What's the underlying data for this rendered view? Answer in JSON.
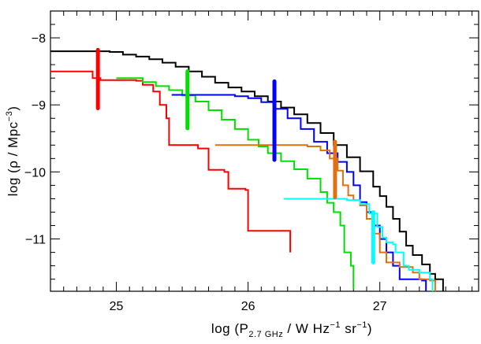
{
  "chart_data": {
    "type": "line",
    "title": "",
    "xlabel": {
      "prefix": "log (P",
      "subscript": "2.7 GHz",
      "middle1": " / W Hz",
      "sup1": "−1",
      "middle2": " sr",
      "sup2": "−1",
      "suffix": ")"
    },
    "ylabel": {
      "prefix": "log (ρ / Mpc",
      "sup": "−3",
      "suffix": ")"
    },
    "xlim": [
      24.5,
      27.75
    ],
    "ylim": [
      -11.78,
      -7.6
    ],
    "x_ticks": [
      {
        "value": 25,
        "label": "25"
      },
      {
        "value": 26,
        "label": "26"
      },
      {
        "value": 27,
        "label": "27"
      }
    ],
    "y_ticks": [
      {
        "value": -8,
        "label": "−8"
      },
      {
        "value": -9,
        "label": "−9"
      },
      {
        "value": -10,
        "label": "−10"
      },
      {
        "value": -11,
        "label": "−11"
      }
    ],
    "x_minor_step": 0.1,
    "y_minor_step": 0.2,
    "grid": false,
    "legend": "none",
    "series": [
      {
        "color": "#000000",
        "width": 2,
        "points": [
          [
            24.5,
            -8.2
          ],
          [
            24.95,
            -8.21
          ],
          [
            25.05,
            -8.25
          ],
          [
            25.15,
            -8.28
          ],
          [
            25.25,
            -8.32
          ],
          [
            25.35,
            -8.37
          ],
          [
            25.45,
            -8.43
          ],
          [
            25.55,
            -8.5
          ],
          [
            25.65,
            -8.58
          ],
          [
            25.75,
            -8.67
          ],
          [
            25.85,
            -8.74
          ],
          [
            25.95,
            -8.8
          ],
          [
            26.05,
            -8.87
          ],
          [
            26.15,
            -8.95
          ],
          [
            26.25,
            -9.04
          ],
          [
            26.35,
            -9.14
          ],
          [
            26.45,
            -9.27
          ],
          [
            26.55,
            -9.42
          ],
          [
            26.65,
            -9.6
          ],
          [
            26.75,
            -9.78
          ],
          [
            26.85,
            -9.99
          ],
          [
            26.95,
            -10.22
          ],
          [
            27.0,
            -10.36
          ],
          [
            27.05,
            -10.52
          ],
          [
            27.1,
            -10.7
          ],
          [
            27.15,
            -10.89
          ],
          [
            27.2,
            -11.1
          ],
          [
            27.25,
            -11.24
          ],
          [
            27.32,
            -11.38
          ],
          [
            27.38,
            -11.52
          ],
          [
            27.42,
            -11.6
          ],
          [
            27.48,
            -11.78
          ]
        ]
      },
      {
        "color": "#ff0000",
        "width": 2,
        "points": [
          [
            24.5,
            -8.5
          ],
          [
            24.78,
            -8.5
          ],
          [
            24.82,
            -8.6
          ],
          [
            24.88,
            -8.63
          ],
          [
            25.15,
            -8.64
          ],
          [
            25.2,
            -8.7
          ],
          [
            25.28,
            -8.8
          ],
          [
            25.33,
            -9.0
          ],
          [
            25.38,
            -9.2
          ],
          [
            25.4,
            -9.6
          ],
          [
            25.62,
            -9.65
          ],
          [
            25.7,
            -9.97
          ],
          [
            25.82,
            -10.0
          ],
          [
            25.85,
            -10.25
          ],
          [
            25.98,
            -10.27
          ],
          [
            26.0,
            -10.88
          ],
          [
            26.32,
            -10.9
          ],
          [
            26.32,
            -11.2
          ]
        ]
      },
      {
        "color": "#00e000",
        "width": 2,
        "points": [
          [
            25.0,
            -8.6
          ],
          [
            25.1,
            -8.6
          ],
          [
            25.2,
            -8.66
          ],
          [
            25.3,
            -8.72
          ],
          [
            25.4,
            -8.78
          ],
          [
            25.5,
            -8.86
          ],
          [
            25.6,
            -8.95
          ],
          [
            25.7,
            -9.08
          ],
          [
            25.8,
            -9.22
          ],
          [
            25.9,
            -9.36
          ],
          [
            26.0,
            -9.52
          ],
          [
            26.08,
            -9.62
          ],
          [
            26.15,
            -9.72
          ],
          [
            26.25,
            -9.84
          ],
          [
            26.35,
            -9.96
          ],
          [
            26.45,
            -10.1
          ],
          [
            26.55,
            -10.3
          ],
          [
            26.6,
            -10.46
          ],
          [
            26.65,
            -10.6
          ],
          [
            26.7,
            -10.8
          ],
          [
            26.73,
            -11.2
          ],
          [
            26.78,
            -11.4
          ],
          [
            26.8,
            -11.75
          ]
        ]
      },
      {
        "color": "#0000ff",
        "width": 2,
        "points": [
          [
            25.42,
            -8.85
          ],
          [
            25.9,
            -8.87
          ],
          [
            26.0,
            -8.9
          ],
          [
            26.1,
            -8.96
          ],
          [
            26.2,
            -9.06
          ],
          [
            26.3,
            -9.2
          ],
          [
            26.4,
            -9.36
          ],
          [
            26.5,
            -9.55
          ],
          [
            26.6,
            -9.72
          ],
          [
            26.68,
            -9.85
          ],
          [
            26.75,
            -10.0
          ],
          [
            26.8,
            -10.2
          ],
          [
            26.85,
            -10.45
          ],
          [
            26.9,
            -10.6
          ],
          [
            26.95,
            -10.8
          ],
          [
            27.0,
            -11.0
          ],
          [
            27.05,
            -11.2
          ],
          [
            27.1,
            -11.4
          ],
          [
            27.15,
            -11.6
          ],
          [
            27.32,
            -11.62
          ],
          [
            27.35,
            -11.78
          ]
        ]
      },
      {
        "color": "#e07010",
        "width": 2,
        "points": [
          [
            25.75,
            -9.6
          ],
          [
            26.45,
            -9.62
          ],
          [
            26.55,
            -9.68
          ],
          [
            26.62,
            -9.8
          ],
          [
            26.68,
            -9.98
          ],
          [
            26.72,
            -10.2
          ],
          [
            26.76,
            -10.35
          ],
          [
            26.8,
            -10.42
          ],
          [
            26.85,
            -10.5
          ],
          [
            26.9,
            -10.7
          ],
          [
            26.95,
            -10.92
          ],
          [
            27.0,
            -11.2
          ],
          [
            27.05,
            -11.35
          ],
          [
            27.15,
            -11.42
          ],
          [
            27.25,
            -11.5
          ],
          [
            27.3,
            -11.6
          ],
          [
            27.38,
            -11.62
          ],
          [
            27.42,
            -11.78
          ]
        ]
      },
      {
        "color": "#00ffff",
        "width": 2,
        "points": [
          [
            26.27,
            -10.4
          ],
          [
            26.75,
            -10.42
          ],
          [
            26.85,
            -10.48
          ],
          [
            26.92,
            -10.62
          ],
          [
            26.98,
            -10.82
          ],
          [
            27.02,
            -10.98
          ],
          [
            27.05,
            -11.05
          ],
          [
            27.1,
            -11.08
          ],
          [
            27.12,
            -11.2
          ],
          [
            27.18,
            -11.4
          ],
          [
            27.22,
            -11.46
          ],
          [
            27.3,
            -11.5
          ],
          [
            27.38,
            -11.6
          ],
          [
            27.4,
            -11.78
          ]
        ]
      }
    ],
    "markers": [
      {
        "x": 24.86,
        "y_low": -9.05,
        "y_high": -8.18,
        "color": "#ff0000"
      },
      {
        "x": 25.54,
        "y_low": -9.35,
        "y_high": -8.5,
        "color": "#00e000"
      },
      {
        "x": 26.2,
        "y_low": -9.82,
        "y_high": -8.65,
        "color": "#0000ff"
      },
      {
        "x": 26.66,
        "y_low": -10.38,
        "y_high": -9.55,
        "color": "#e07010"
      },
      {
        "x": 26.95,
        "y_low": -11.35,
        "y_high": -10.6,
        "color": "#00ffff"
      }
    ]
  }
}
